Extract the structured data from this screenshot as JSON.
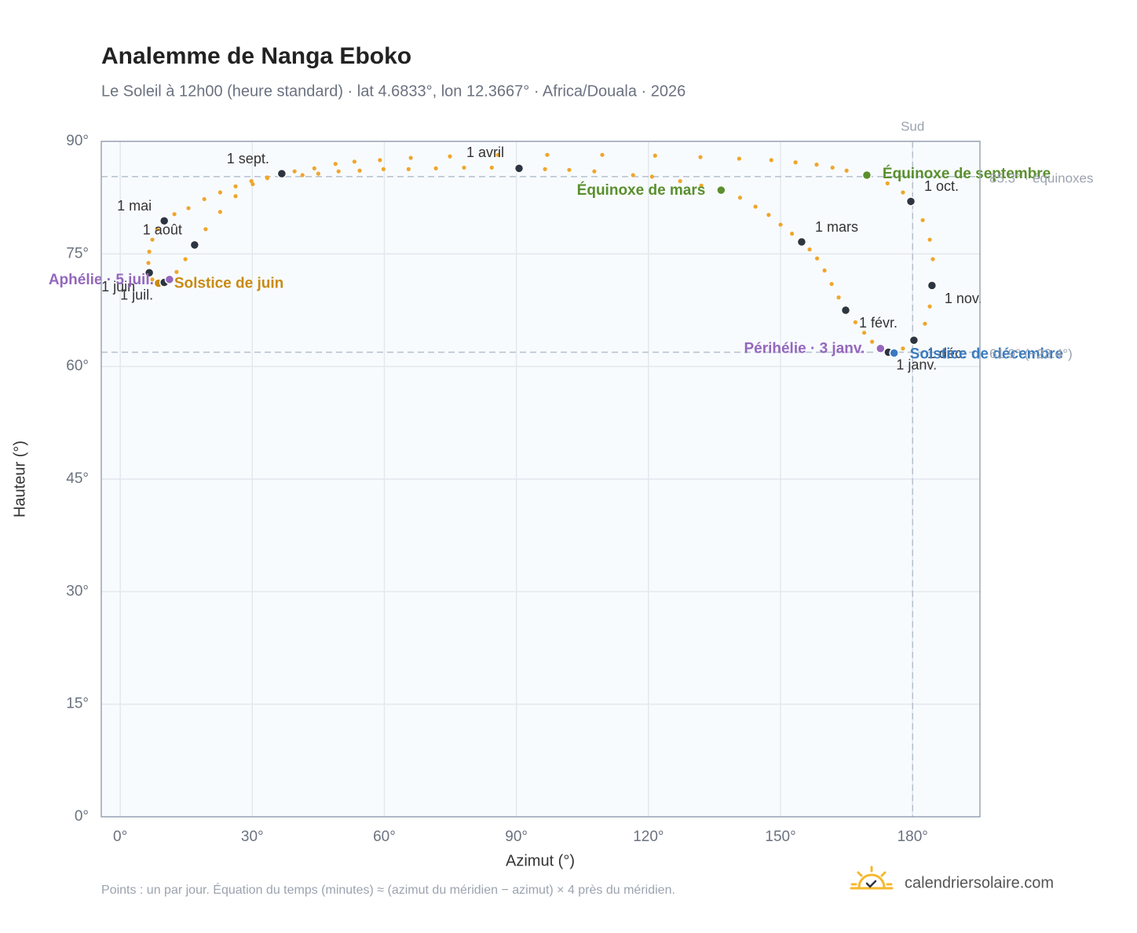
{
  "chart_data": {
    "type": "scatter",
    "title": "Analemme de Nanga Eboko",
    "subtitle": "Le Soleil à 12h00 (heure standard) · lat 4.6833°, lon 12.3667° · Africa/Douala · 2026",
    "x_label": "Azimut (°)",
    "y_label": "Hauteur (°)",
    "color": "#f0a62a",
    "x": [
      174.4,
      172.7,
      170.8,
      169.0,
      167.0,
      164.8,
      163.2,
      161.6,
      160.0,
      158.3,
      156.6,
      154.8,
      152.6,
      150.0,
      147.3,
      144.3,
      140.8,
      136.5,
      132.0,
      127.2,
      120.8,
      116.5,
      107.7,
      102.0,
      96.5,
      90.6,
      84.4,
      78.1,
      71.7,
      65.5,
      59.8,
      54.4,
      49.6,
      45.0,
      41.4,
      36.9,
      33.4,
      29.8,
      26.2,
      22.7,
      19.1,
      15.5,
      12.3,
      10.0,
      8.4,
      7.3,
      6.6,
      6.4,
      6.6,
      7.3,
      8.7,
      10.0,
      11.2,
      12.8,
      14.8,
      16.9,
      19.4,
      22.7,
      26.2,
      30.1,
      33.4,
      36.7,
      39.6,
      44.1,
      48.9,
      53.2,
      59.0,
      66.0,
      74.9,
      85.8,
      97.0,
      109.5,
      121.5,
      131.8,
      140.6,
      147.9,
      153.4,
      158.2,
      161.8,
      165.0,
      169.6,
      174.3,
      177.8,
      179.6,
      182.3,
      183.9,
      184.6,
      184.4,
      183.9,
      182.8,
      180.3,
      177.8,
      175.8,
      174.5
    ],
    "values": [
      62.0,
      62.4,
      63.3,
      64.5,
      65.9,
      67.5,
      69.2,
      71.0,
      72.8,
      74.4,
      75.6,
      76.6,
      77.7,
      78.9,
      80.2,
      81.3,
      82.5,
      83.5,
      84.1,
      84.7,
      85.3,
      85.5,
      86.0,
      86.2,
      86.3,
      86.4,
      86.5,
      86.5,
      86.4,
      86.3,
      86.3,
      86.1,
      86.0,
      85.7,
      85.5,
      85.4,
      85.1,
      84.7,
      84.0,
      83.2,
      82.3,
      81.1,
      80.3,
      79.4,
      78.3,
      76.9,
      75.3,
      73.8,
      72.5,
      71.6,
      71.1,
      71.2,
      71.6,
      72.6,
      74.3,
      76.2,
      78.3,
      80.6,
      82.7,
      84.3,
      85.2,
      85.7,
      86.0,
      86.4,
      87.0,
      87.3,
      87.5,
      87.8,
      88.0,
      88.2,
      88.2,
      88.2,
      88.1,
      87.9,
      87.7,
      87.5,
      87.2,
      86.9,
      86.5,
      86.1,
      85.5,
      84.4,
      83.2,
      82.0,
      79.5,
      76.9,
      74.3,
      70.8,
      68.0,
      65.7,
      63.5,
      62.4,
      61.8,
      61.9
    ],
    "markers": [
      {
        "label": "1 janv.",
        "x": 174.5,
        "y": 61.9,
        "color": "#2d3540",
        "label_color": "#333333"
      },
      {
        "label": "1 févr.",
        "x": 164.8,
        "y": 67.5,
        "color": "#2d3540",
        "label_color": "#333333"
      },
      {
        "label": "1 mars",
        "x": 154.8,
        "y": 76.6,
        "color": "#2d3540",
        "label_color": "#333333"
      },
      {
        "label": "Équinoxe de mars",
        "x": 136.5,
        "y": 83.5,
        "color": "#5a8f2e",
        "label_color": "#5a8f2e"
      },
      {
        "label": "1 avril",
        "x": 90.6,
        "y": 86.4,
        "color": "#2d3540",
        "label_color": "#333333"
      },
      {
        "label": "1 mai",
        "x": 10.0,
        "y": 79.4,
        "color": "#2d3540",
        "label_color": "#333333"
      },
      {
        "label": "1 juin",
        "x": 6.6,
        "y": 72.5,
        "color": "#2d3540",
        "label_color": "#333333"
      },
      {
        "label": "Solstice de juin",
        "x": 8.7,
        "y": 71.1,
        "color": "#c98a10",
        "label_color": "#c98a10"
      },
      {
        "label": "1 juil.",
        "x": 10.0,
        "y": 71.2,
        "color": "#2d3540",
        "label_color": "#333333"
      },
      {
        "label": "Aphélie · 5 juil.",
        "x": 11.2,
        "y": 71.6,
        "color": "#9467bd",
        "label_color": "#9467bd"
      },
      {
        "label": "1 août",
        "x": 16.9,
        "y": 76.2,
        "color": "#2d3540",
        "label_color": "#333333"
      },
      {
        "label": "1 sept.",
        "x": 36.7,
        "y": 85.7,
        "color": "#2d3540",
        "label_color": "#333333"
      },
      {
        "label": "Équinoxe de septembre",
        "x": 169.6,
        "y": 85.5,
        "color": "#5a8f2e",
        "label_color": "#5a8f2e"
      },
      {
        "label": "1 oct.",
        "x": 179.6,
        "y": 82.0,
        "color": "#2d3540",
        "label_color": "#333333"
      },
      {
        "label": "1 nov.",
        "x": 184.4,
        "y": 70.8,
        "color": "#2d3540",
        "label_color": "#333333"
      },
      {
        "label": "1 déc.",
        "x": 180.3,
        "y": 63.5,
        "color": "#2d3540",
        "label_color": "#333333"
      },
      {
        "label": "Solstice de décembre",
        "x": 175.8,
        "y": 61.8,
        "color": "#3a7bbf",
        "label_color": "#3a7bbf"
      },
      {
        "label": "Périhélie · 3 janv.",
        "x": 172.7,
        "y": 62.4,
        "color": "#9467bd",
        "label_color": "#9467bd"
      }
    ],
    "guides": [
      {
        "axis": "y",
        "value": 85.3,
        "label": "85.3° · équinoxes"
      },
      {
        "axis": "y",
        "value": 61.9,
        "label": "61.9° (−23.4°)"
      },
      {
        "axis": "x",
        "value": 180,
        "label": "Sud"
      }
    ],
    "xlim": [
      -4.3,
      195.3
    ],
    "ylim": [
      0,
      90
    ],
    "xticks": [
      {
        "value": 0,
        "label": "0°"
      },
      {
        "value": 30,
        "label": "30°"
      },
      {
        "value": 60,
        "label": "60°"
      },
      {
        "value": 90,
        "label": "90°"
      },
      {
        "value": 120,
        "label": "120°"
      },
      {
        "value": 150,
        "label": "150°"
      },
      {
        "value": 180,
        "label": "180°"
      }
    ],
    "yticks": [
      {
        "value": 0,
        "label": "0°"
      },
      {
        "value": 15,
        "label": "15°"
      },
      {
        "value": 30,
        "label": "30°"
      },
      {
        "value": 45,
        "label": "45°"
      },
      {
        "value": 60,
        "label": "60°"
      },
      {
        "value": 75,
        "label": "75°"
      },
      {
        "value": 90,
        "label": "90°"
      }
    ],
    "grid": true,
    "note": "Points : un par jour. Équation du temps (minutes) ≈ (azimut du méridien − azimut) × 4 près du méridien.",
    "brand": "calendriersolaire.com"
  }
}
